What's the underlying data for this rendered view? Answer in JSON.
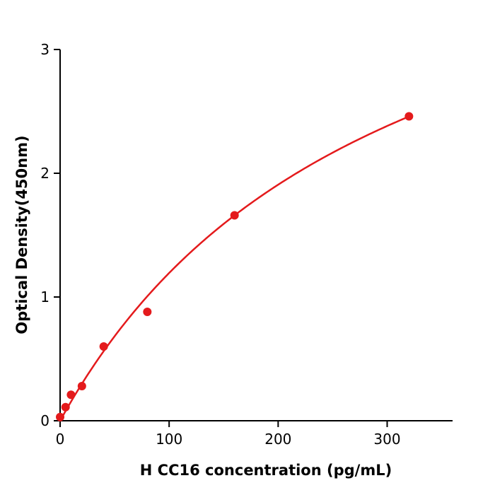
{
  "chart_data": {
    "type": "scatter",
    "title": "",
    "xlabel": "H  CC16 concentration (pg/mL)",
    "ylabel": "Optical Density(450nm)",
    "x": [
      0,
      5,
      10,
      20,
      40,
      80,
      160,
      320
    ],
    "y": [
      0.03,
      0.11,
      0.21,
      0.28,
      0.6,
      0.88,
      1.66,
      2.46
    ],
    "xlim": [
      0,
      360
    ],
    "ylim": [
      0,
      3
    ],
    "xticks": [
      0,
      100,
      200,
      300
    ],
    "yticks": [
      0,
      1,
      2,
      3
    ],
    "grid": false,
    "legend": "none",
    "point_color": "#e41a1c",
    "line_color": "#e41a1c",
    "axis_color": "#000000",
    "fit_curve": {
      "model": "y = a*x/(b+x)",
      "a": 4.74,
      "b": 297,
      "x_start": 0,
      "x_end": 320
    }
  }
}
